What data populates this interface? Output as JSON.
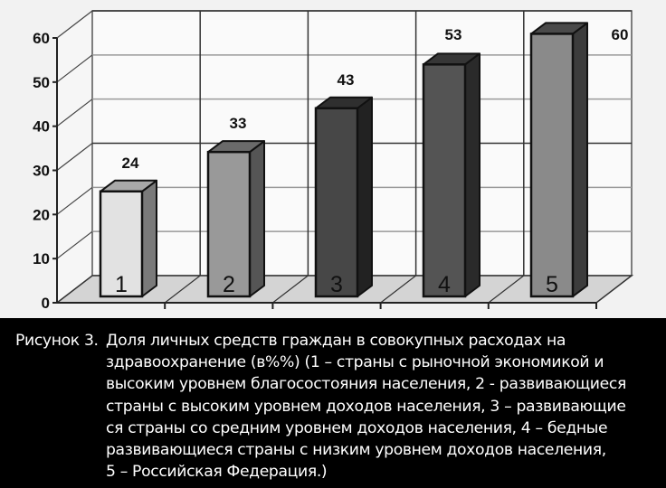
{
  "chart_data": {
    "type": "bar",
    "style": "3d-column",
    "title": "",
    "xlabel": "",
    "ylabel": "",
    "ylim": [
      0,
      60
    ],
    "yticks": [
      0,
      10,
      20,
      30,
      40,
      50,
      60
    ],
    "grid": true,
    "legend": null,
    "categories": [
      "1",
      "2",
      "3",
      "4",
      "5"
    ],
    "values": [
      24,
      33,
      43,
      53,
      60
    ],
    "data_labels": [
      "24",
      "33",
      "43",
      "53",
      "60"
    ],
    "bar_colors": [
      "#e2e2e2",
      "#999999",
      "#474747",
      "#545454",
      "#8a8a8a"
    ],
    "bar_side_colors": [
      "#7a7a7a",
      "#555555",
      "#222222",
      "#2a2a2a",
      "#3c3c3c"
    ],
    "bar_top_colors": [
      "#a8a8a8",
      "#6a6a6a",
      "#2f2f2f",
      "#363636",
      "#4a4a4a"
    ],
    "category_meaning": {
      "1": "страны с рыночной экономикой и высоким уровнем благосостояния населения",
      "2": "развивающиеся страны с высоким уровнем доходов населения",
      "3": "развивающиеся страны со средним уровнем доходов населения",
      "4": "бедные развивающиеся страны с низким уровнем доходов населения",
      "5": "Российская Федерация"
    }
  },
  "caption": {
    "prefix": "Рисунок  3.",
    "lines": [
      "Доля личных средств граждан в совокупных расходах на",
      "здравоохранение (в%%) (1 – страны с рыночной экономикой и",
      "высоким уровнем благосостояния населения, 2 - развивающиеся",
      "страны с высоким уровнем доходов населения, 3 – развивающие",
      "ся страны со средним уровнем доходов населения, 4 – бедные",
      "развивающиеся страны с низким уровнем доходов населения,",
      "5 – Российская Федерация.)"
    ]
  },
  "colors": {
    "chart_background": "#f2f2f2",
    "wall": "#fafafa",
    "floor": "#d4d4d4",
    "grid": "#888888",
    "caption_background": "#000000",
    "caption_text": "#ffffff"
  }
}
